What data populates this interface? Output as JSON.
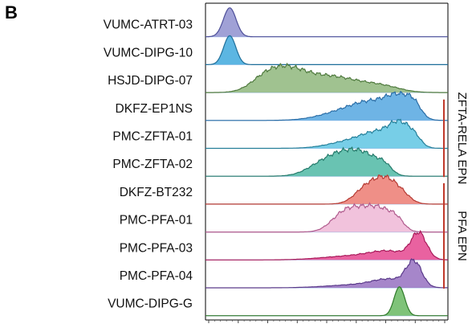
{
  "panel_letter": "B",
  "chart_data": {
    "type": "ridgeline",
    "title": "",
    "xlabel": "",
    "ylabel": "",
    "x_range": [
      0,
      100
    ],
    "xticks_printed": false,
    "series": [
      {
        "name": "VUMC-ATRT-03",
        "color": "#8f91cf",
        "stroke": "#4d4f99",
        "density": [
          {
            "center": 10,
            "width": 2.6,
            "height": 1.0
          }
        ]
      },
      {
        "name": "VUMC-DIPG-10",
        "color": "#3fa9dd",
        "stroke": "#1f6f9a",
        "density": [
          {
            "center": 10,
            "width": 2.5,
            "height": 1.0
          }
        ]
      },
      {
        "name": "HSJD-DIPG-07",
        "color": "#8fb77d",
        "stroke": "#4f7a3e",
        "density": [
          {
            "center": 24,
            "width": 6,
            "height": 0.45
          },
          {
            "center": 33,
            "width": 7,
            "height": 0.65
          },
          {
            "center": 45,
            "width": 11,
            "height": 0.55
          },
          {
            "center": 60,
            "width": 10,
            "height": 0.32
          },
          {
            "center": 74,
            "width": 7,
            "height": 0.18
          }
        ]
      },
      {
        "name": "DKFZ-EP1NS",
        "color": "#55a7e0",
        "stroke": "#2a6da6",
        "density": [
          {
            "center": 58,
            "width": 10,
            "height": 0.45
          },
          {
            "center": 70,
            "width": 8,
            "height": 0.7
          },
          {
            "center": 80,
            "width": 5,
            "height": 0.9
          },
          {
            "center": 86,
            "width": 3,
            "height": 0.55
          }
        ]
      },
      {
        "name": "PMC-ZFTA-01",
        "color": "#5fc5e3",
        "stroke": "#247f99",
        "density": [
          {
            "center": 60,
            "width": 9,
            "height": 0.35
          },
          {
            "center": 72,
            "width": 7,
            "height": 0.7
          },
          {
            "center": 80,
            "width": 4,
            "height": 0.95
          },
          {
            "center": 86,
            "width": 3,
            "height": 0.5
          }
        ]
      },
      {
        "name": "PMC-ZFTA-02",
        "color": "#4fb9a5",
        "stroke": "#257a6b",
        "density": [
          {
            "center": 50,
            "width": 7,
            "height": 0.7
          },
          {
            "center": 60,
            "width": 6,
            "height": 0.85
          },
          {
            "center": 68,
            "width": 5,
            "height": 0.6
          },
          {
            "center": 74,
            "width": 3,
            "height": 0.35
          }
        ]
      },
      {
        "name": "DKFZ-BT232",
        "color": "#ec7b72",
        "stroke": "#b53a33",
        "density": [
          {
            "center": 67,
            "width": 5,
            "height": 0.9
          },
          {
            "center": 74,
            "width": 4,
            "height": 0.85
          },
          {
            "center": 80,
            "width": 4,
            "height": 0.6
          }
        ]
      },
      {
        "name": "PMC-PFA-01",
        "color": "#efb7d6",
        "stroke": "#b05a8d",
        "density": [
          {
            "center": 56,
            "width": 5,
            "height": 0.55
          },
          {
            "center": 64,
            "width": 6,
            "height": 0.85
          },
          {
            "center": 73,
            "width": 5,
            "height": 0.75
          },
          {
            "center": 79,
            "width": 3,
            "height": 0.35
          }
        ]
      },
      {
        "name": "PMC-PFA-03",
        "color": "#e5478f",
        "stroke": "#a81a5a",
        "density": [
          {
            "center": 60,
            "width": 12,
            "height": 0.15
          },
          {
            "center": 76,
            "width": 8,
            "height": 0.3
          },
          {
            "center": 88,
            "width": 3.2,
            "height": 1.0
          }
        ]
      },
      {
        "name": "PMC-PFA-04",
        "color": "#9771c1",
        "stroke": "#5a3a8a",
        "density": [
          {
            "center": 62,
            "width": 12,
            "height": 0.12
          },
          {
            "center": 76,
            "width": 7,
            "height": 0.3
          },
          {
            "center": 86,
            "width": 3.2,
            "height": 1.0
          }
        ]
      },
      {
        "name": "VUMC-DIPG-G",
        "color": "#68b962",
        "stroke": "#2f7a2a",
        "density": [
          {
            "center": 80,
            "width": 2.2,
            "height": 1.0
          }
        ]
      }
    ],
    "groups": [
      {
        "label": "ZFTA-RELA EPN",
        "color": "#c0392b",
        "from_row": 3,
        "to_row": 5
      },
      {
        "label": "PFA EPN",
        "color": "#c0392b",
        "from_row": 6,
        "to_row": 9
      }
    ]
  }
}
